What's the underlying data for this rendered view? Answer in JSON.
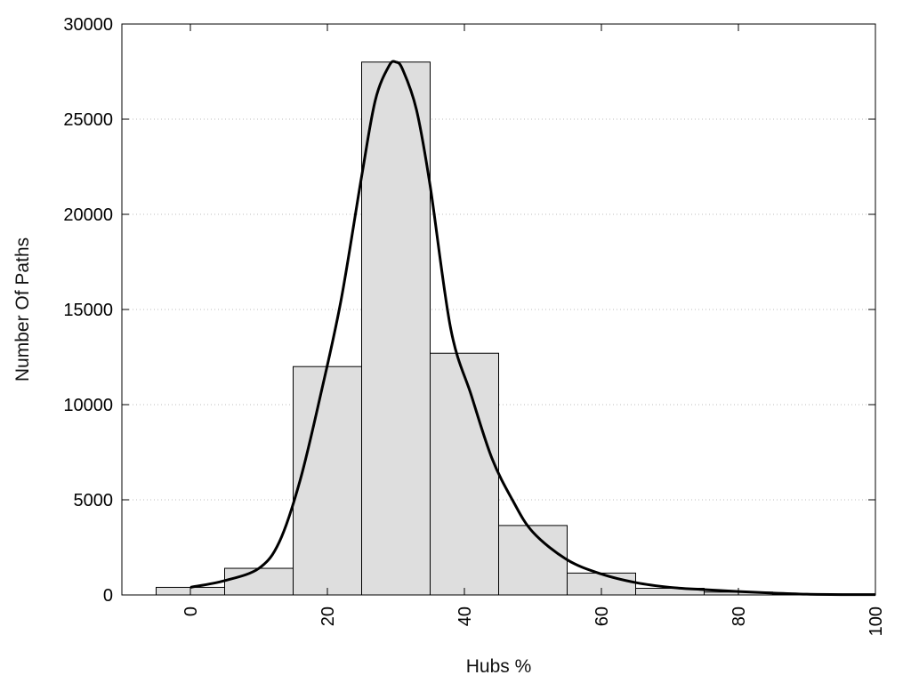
{
  "chart_data": {
    "type": "bar",
    "title": "",
    "xlabel": "Hubs %",
    "ylabel": "Number Of Paths",
    "xlim": [
      -10,
      100
    ],
    "ylim": [
      0,
      30000
    ],
    "xticks": [
      0,
      20,
      40,
      60,
      80,
      100
    ],
    "yticks": [
      0,
      5000,
      10000,
      15000,
      20000,
      25000,
      30000
    ],
    "grid": "horizontal-dotted",
    "bin_width": 10,
    "bars": {
      "centers": [
        0,
        10,
        20,
        30,
        40,
        50,
        60,
        70,
        80,
        90,
        100
      ],
      "values": [
        400,
        1400,
        12000,
        28000,
        12700,
        3650,
        1150,
        350,
        150,
        50,
        50
      ]
    },
    "bar_color": "#dedede",
    "curve_color": "#000000",
    "curve": {
      "x": [
        0,
        5,
        10,
        13,
        16,
        19,
        22,
        25,
        27,
        29,
        30,
        31,
        33,
        35,
        38,
        41,
        44,
        47,
        50,
        55,
        60,
        65,
        70,
        75,
        80,
        85,
        90,
        95,
        100
      ],
      "y": [
        400,
        750,
        1400,
        2800,
        6000,
        10500,
        15500,
        22000,
        26000,
        27800,
        28000,
        27600,
        25500,
        21500,
        14000,
        10500,
        7200,
        5000,
        3300,
        1850,
        1100,
        650,
        400,
        280,
        180,
        100,
        40,
        20,
        20
      ]
    }
  }
}
